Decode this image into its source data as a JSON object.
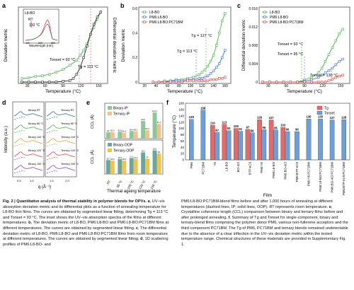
{
  "colors": {
    "green": "#4caf50",
    "black": "#222222",
    "blue": "#3a6fd8",
    "red": "#e64545",
    "bar_blue": "#6f9fd8",
    "bar_red": "#e46a6a",
    "binary_ip": "#8cc79a",
    "ternary_ip": "#f2c28a",
    "binary_oop": "#6aa6a0",
    "ternary_oop": "#f2c24a"
  },
  "panels": {
    "a": "a",
    "b": "b",
    "c": "c",
    "d": "d",
    "e": "e",
    "f": "f"
  },
  "chart_data": [
    {
      "panel": "a",
      "type": "line",
      "xlabel": "Temperature (°C)",
      "ylabel": "Deviation metric",
      "ylabel2": "Differential deviation metric",
      "xlim": [
        30,
        160
      ],
      "xticks": [
        "30",
        "60",
        "90",
        "120",
        "150"
      ],
      "series": [
        {
          "name": "Deviation metric",
          "color": "#4caf50",
          "x": [
            35,
            45,
            55,
            65,
            75,
            85,
            95,
            105,
            115,
            120,
            125,
            130,
            135,
            140,
            145,
            150
          ],
          "values": [
            0.05,
            0.06,
            0.08,
            0.09,
            0.11,
            0.14,
            0.18,
            0.24,
            0.31,
            0.38,
            0.45,
            0.55,
            0.68,
            0.78,
            0.9,
            1.0
          ]
        },
        {
          "name": "Differential deviation metric",
          "color": "#222222",
          "x": [
            35,
            45,
            55,
            65,
            75,
            85,
            95,
            105,
            110,
            115,
            120,
            125,
            130,
            135,
            140,
            145,
            150
          ],
          "values": [
            0.0,
            0.0,
            0.0,
            0.0,
            0.0,
            0.0,
            0.01,
            0.02,
            0.05,
            0.11,
            0.2,
            0.34,
            0.5,
            0.66,
            0.8,
            0.9,
            0.97
          ]
        }
      ],
      "annotations": [
        "Tonset = 93 °C",
        "Tg = 113 °C"
      ],
      "inset": {
        "title": "L8-BO",
        "rt": "RT",
        "t150": "150 °C",
        "xlabel": "Wavelength (nm)",
        "ylabel": "Absorbance",
        "xticks": [
          "400",
          "600",
          "800"
        ]
      }
    },
    {
      "panel": "b",
      "type": "line",
      "xlabel": "Temperature (°C)",
      "ylabel": "Deviation metric",
      "xlim": [
        0,
        160
      ],
      "ylim": [
        0,
        0.6
      ],
      "xticks": [
        "20",
        "40",
        "60",
        "80",
        "100",
        "120",
        "140",
        "160"
      ],
      "yticks": [
        "0",
        "0.2",
        "0.4",
        "0.6"
      ],
      "series": [
        {
          "name": "L8-BO",
          "color": "#4caf50",
          "x": [
            25,
            35,
            45,
            55,
            65,
            75,
            85,
            95,
            105,
            110,
            115,
            120,
            125,
            130,
            135,
            140,
            145,
            150
          ],
          "values": [
            0.0,
            0.0,
            0.01,
            0.01,
            0.02,
            0.02,
            0.03,
            0.04,
            0.06,
            0.08,
            0.1,
            0.13,
            0.17,
            0.22,
            0.3,
            0.4,
            0.5,
            0.56
          ]
        },
        {
          "name": "PM6:L8-BO",
          "color": "#3a6fd8",
          "x": [
            25,
            35,
            45,
            55,
            65,
            75,
            85,
            95,
            105,
            110,
            115,
            120,
            125,
            130,
            135,
            140,
            145,
            150
          ],
          "values": [
            0.0,
            0.0,
            0.0,
            0.01,
            0.01,
            0.01,
            0.02,
            0.02,
            0.03,
            0.03,
            0.04,
            0.05,
            0.07,
            0.09,
            0.12,
            0.15,
            0.2,
            0.26
          ]
        },
        {
          "name": "PM6:L8-BO:PC71BM",
          "color": "#e64545",
          "x": [
            25,
            35,
            45,
            55,
            65,
            75,
            85,
            95,
            105,
            110,
            115,
            120,
            125,
            130,
            135,
            140,
            145,
            150
          ],
          "values": [
            0.0,
            0.0,
            0.0,
            0.0,
            0.0,
            0.0,
            0.01,
            0.01,
            0.01,
            0.01,
            0.01,
            0.01,
            0.02,
            0.02,
            0.02,
            0.03,
            0.03,
            0.04
          ]
        }
      ],
      "annotations": [
        "Tg = 127 °C",
        "Tg = 113 °C"
      ]
    },
    {
      "panel": "c",
      "type": "line",
      "xlabel": "Temperature (°C)",
      "ylabel": "Differential deviation metric",
      "xlim": [
        30,
        160
      ],
      "ylim": [
        0,
        0.016
      ],
      "xticks": [
        "30",
        "60",
        "90",
        "120",
        "150"
      ],
      "yticks": [
        "0",
        "0.004",
        "0.008",
        "0.012",
        "0.016"
      ],
      "series": [
        {
          "name": "L8-BO",
          "color": "#4caf50",
          "x": [
            35,
            45,
            55,
            65,
            75,
            85,
            95,
            105,
            115,
            120,
            125,
            130,
            135,
            140,
            145,
            150
          ],
          "values": [
            0.0,
            0.0,
            0.0,
            0.0,
            0.0,
            0.0,
            0.0005,
            0.001,
            0.002,
            0.003,
            0.0045,
            0.006,
            0.0075,
            0.009,
            0.0105,
            0.0115
          ]
        },
        {
          "name": "PM6:L8-BO",
          "color": "#3a6fd8",
          "x": [
            35,
            45,
            55,
            65,
            75,
            85,
            95,
            105,
            115,
            120,
            125,
            130,
            135,
            140,
            145,
            150
          ],
          "values": [
            0.0,
            0.0,
            0.0,
            0.0,
            0.0,
            0.0,
            0.0002,
            0.0005,
            0.001,
            0.0015,
            0.002,
            0.0025,
            0.003,
            0.0038,
            0.0045,
            0.005
          ]
        },
        {
          "name": "PM6:L8-BO:PC71BM",
          "color": "#e64545",
          "x": [
            35,
            45,
            55,
            65,
            75,
            85,
            95,
            105,
            115,
            120,
            125,
            130,
            135,
            140,
            145,
            150
          ],
          "values": [
            0.0,
            0.0,
            0.0,
            0.0,
            0.0,
            0.0,
            0.0,
            0.0,
            0.0,
            0.0,
            0.0,
            0.0003,
            0.0006,
            0.001,
            0.0013,
            0.0015
          ]
        }
      ],
      "annotations": [
        "Tonset = 93 °C",
        "Tonset = 95 °C",
        "Tonset = 130 °C"
      ]
    },
    {
      "panel": "d",
      "type": "line",
      "xlabel": "q (Å⁻¹)",
      "ylabel": "Intensity (a.u.)",
      "xticks": [
        "0.5",
        "1.0",
        "1.5",
        "2.0"
      ],
      "left_labels": [
        "Binary RT",
        "Binary 85 °C",
        "Binary 100 °C",
        "Binary 120 °C",
        "Binary 150 °C"
      ],
      "right_labels": [
        "Ternary RT",
        "Ternary 85 °C",
        "Ternary 100 °C",
        "Ternary 120 °C",
        "Ternary 150 °C"
      ]
    },
    {
      "panel": "e",
      "type": "bar",
      "xlabel": "Thermal ageing temperature",
      "categories": [
        "RT",
        "85 °C",
        "100 °C",
        "120 °C",
        "150 °C"
      ],
      "top": {
        "ylabel": "CCL (Å)",
        "series": [
          {
            "name": "Binary-IP",
            "values": [
              82.0,
              82.6,
              83.4,
              94.6,
              104.1
            ]
          },
          {
            "name": "Ternary-IP",
            "values": [
              82.4,
              81.5,
              83.1,
              84.3,
              91.4
            ]
          }
        ]
      },
      "bottom": {
        "ylabel": "CCL (Å)",
        "series": [
          {
            "name": "Binary-OOP",
            "values": [
              16.7,
              16.9,
              17.1,
              18.2,
              18.6
            ]
          },
          {
            "name": "Ternary-OOP",
            "values": [
              16.6,
              16.6,
              16.9,
              17.0,
              18.0
            ]
          }
        ]
      }
    },
    {
      "panel": "f",
      "type": "bar",
      "xlabel": "Film",
      "ylabel": "Temperature (°C)",
      "ylim": [
        0,
        180
      ],
      "yticks": [
        "0",
        "20",
        "40",
        "60",
        "80",
        "100",
        "120",
        "140",
        "160",
        "180"
      ],
      "categories": [
        "PM6",
        "PC71BM",
        "Y6",
        "L8-BO",
        "BO-4Cl",
        "BTP-eC9",
        "PM6:Y6",
        "PM6:L8-BO",
        "PM6:BO-4Cl",
        "PM6:BTP-eC9",
        "PM6:Y6:PC71BM",
        "PM6:L8-BO:PC71BM",
        "PM6:BO-4Cl:PC71BM",
        "PM6:BTP-eC9:PC71BM"
      ],
      "series": [
        {
          "name": "Tg",
          "values": [
            null,
            null,
            110,
            113,
            100,
            97,
            128,
            127,
            103,
            null,
            null,
            null,
            null,
            null
          ]
        },
        {
          "name": "Tonset",
          "values": [
            129,
            158,
            87,
            93,
            91,
            86,
            96,
            95,
            90,
            90,
            130,
            130,
            127,
            128
          ]
        }
      ]
    }
  ],
  "caption": {
    "col1": [
      {
        "b": "Fig. 2 | Quantitative analysis of thermal stability in polymer blends for OPVs.",
        "t": ""
      },
      {
        "b": "a",
        "t": ", UV–vis absorption deviation metric and its differential plots as a function of annealing temperature for L8-BO thin films. The curves are obtained by segmented linear fitting, determining Tg = 113 °C and Tonset = 93 °C. The inset shows the UV–vis absorption spectra of the films at different temperatures."
      },
      {
        "b": "b",
        "t": ", The deviation metric of L8-BO, PM6:L8-BO and PM6:L8-BO:PC71BM films at different temperatures. The curves are obtained by segmented linear fitting."
      },
      {
        "b": "c",
        "t": ", The differential deviation metric of L8-BO, PM6:L8-BO and PM6:L8-BO:PC71BM films from room temperature at different temperatures. The curves are obtained by segmented linear fitting."
      },
      {
        "b": "d",
        "t": ", 1D scattering profiles of PM6:L8-BO- and"
      }
    ],
    "col2": [
      {
        "b": "",
        "t": "PM6:L8-BO:PC71BM-blend films before and after 1,000 hours of annealing at different temperatures (dashed lines, IP; solid lines, OOP). RT represents room temperature."
      },
      {
        "b": "e",
        "t": ", Crystalline coherence length (CCL) comparison between binary and ternary films before and after prolonged annealing."
      },
      {
        "b": "f",
        "t": ", Summary of Tg and Tonset for single-component, binary and ternary-blend films comprising the polymer donor PM6, various non-fullerene acceptors and the third component PC71BM. The Tg of PM6, PC71BM and ternary blends remained undetectable due to the absence of a clear inflection in the UV–vis deviation metric within the tested temperature range. Chemical structures of these materials are provided in Supplementary Fig. 1."
      }
    ]
  }
}
